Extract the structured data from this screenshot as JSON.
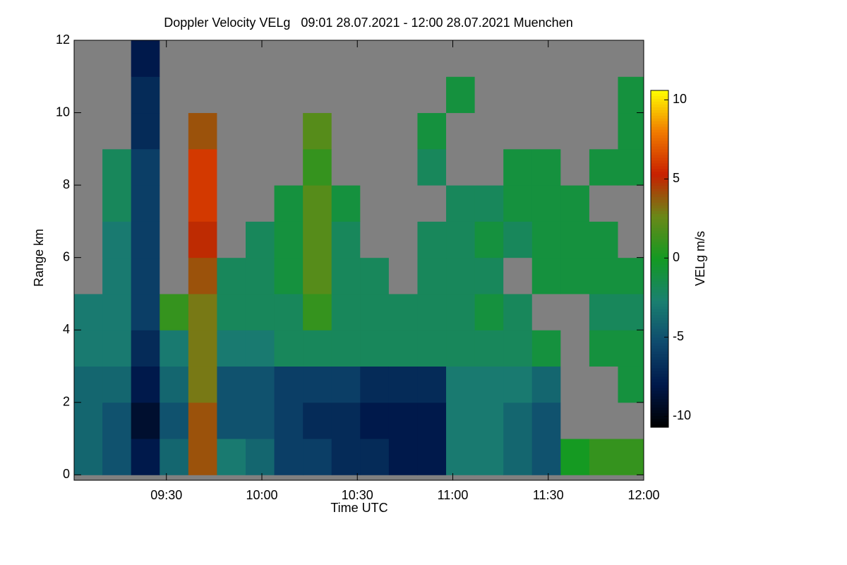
{
  "chart_data": {
    "type": "heatmap",
    "title": "Doppler Velocity VELg   09:01 28.07.2021 - 12:00 28.07.2021 Muenchen",
    "x_label": "Time UTC",
    "y_label": "Range km",
    "colorbar_label": "VELg m/s",
    "xlim": [
      9.0167,
      12.0
    ],
    "ylim": [
      -0.15,
      12
    ],
    "zlim": [
      -10.7,
      10.6
    ],
    "xticks": [
      {
        "value": 9.5,
        "label": "09:30"
      },
      {
        "value": 10,
        "label": "10:00"
      },
      {
        "value": 10.5,
        "label": "10:30"
      },
      {
        "value": 11,
        "label": "11:00"
      },
      {
        "value": 11.5,
        "label": "11:30"
      },
      {
        "value": 12,
        "label": "12:00"
      }
    ],
    "yticks": [
      0,
      2,
      4,
      6,
      8,
      10,
      12
    ],
    "zticks": [
      10,
      5,
      0,
      -5,
      -10
    ],
    "colormap": [
      "#000000",
      "#00184a",
      "#0e4a6e",
      "#1a8070",
      "#139a22",
      "#6a8818",
      "#c82000",
      "#f07a00",
      "#ffff00"
    ],
    "null_color": "#808080",
    "x": [
      9.09,
      9.24,
      9.39,
      9.54,
      9.69,
      9.84,
      9.99,
      10.14,
      10.29,
      10.44,
      10.59,
      10.74,
      10.89,
      11.04,
      11.19,
      11.34,
      11.49,
      11.64,
      11.79,
      11.94
    ],
    "y": [
      0.5,
      1.5,
      2.5,
      3.5,
      4.5,
      5.5,
      6.5,
      7.5,
      8.5,
      9.5,
      10.5,
      11.5
    ],
    "z": [
      [
        -4,
        -5,
        -8,
        -4,
        4,
        -3,
        -4,
        -6,
        -6,
        -7,
        -7,
        -8,
        -8,
        -3,
        -3,
        -4,
        -5,
        0,
        1,
        1
      ],
      [
        -4,
        -5,
        -9,
        -5,
        4,
        -5,
        -5,
        -6,
        -7,
        -7,
        -8,
        -8,
        -8,
        -3,
        -3,
        -4,
        -5,
        null,
        null,
        null
      ],
      [
        -4,
        -4,
        -8,
        -4,
        3,
        -5,
        -5,
        -6,
        -6,
        -6,
        -7,
        -7,
        -7,
        -3,
        -3,
        -3,
        -4,
        null,
        null,
        -1
      ],
      [
        -3,
        -3,
        -7,
        -3,
        3,
        -3,
        -3,
        -2,
        -2,
        -2,
        -2,
        -2,
        -2,
        -2,
        -2,
        -2,
        -1,
        null,
        -1,
        -1
      ],
      [
        -3,
        -3,
        -6,
        1,
        3,
        -2,
        -2,
        -2,
        1,
        -2,
        -2,
        -2,
        -2,
        -2,
        -1,
        -2,
        null,
        null,
        -2,
        -2
      ],
      [
        null,
        -3,
        -6,
        null,
        4,
        -2,
        -2,
        -1,
        2,
        -2,
        -2,
        null,
        -2,
        -2,
        -2,
        null,
        -1,
        -1,
        -1,
        -1
      ],
      [
        null,
        -3,
        -6,
        null,
        5,
        null,
        -2,
        -1,
        2,
        -2,
        null,
        null,
        -2,
        -2,
        -1,
        -2,
        -1,
        -1,
        -1,
        null
      ],
      [
        null,
        -2,
        -6,
        null,
        6,
        null,
        null,
        -1,
        2,
        -1,
        null,
        null,
        null,
        -2,
        -2,
        -1,
        -1,
        -1,
        null,
        null
      ],
      [
        null,
        -2,
        -6,
        null,
        6,
        null,
        null,
        null,
        1,
        null,
        null,
        null,
        -2,
        null,
        null,
        -1,
        -1,
        null,
        -1,
        -1
      ],
      [
        null,
        null,
        -7,
        null,
        4,
        null,
        null,
        null,
        2,
        null,
        null,
        null,
        -1,
        null,
        null,
        null,
        null,
        null,
        null,
        -1
      ],
      [
        null,
        null,
        -7,
        null,
        null,
        null,
        null,
        null,
        null,
        null,
        null,
        null,
        null,
        -1,
        null,
        null,
        null,
        null,
        null,
        -1
      ],
      [
        null,
        null,
        -8,
        null,
        null,
        null,
        null,
        null,
        null,
        null,
        null,
        null,
        null,
        null,
        null,
        null,
        null,
        null,
        null,
        null
      ]
    ]
  }
}
